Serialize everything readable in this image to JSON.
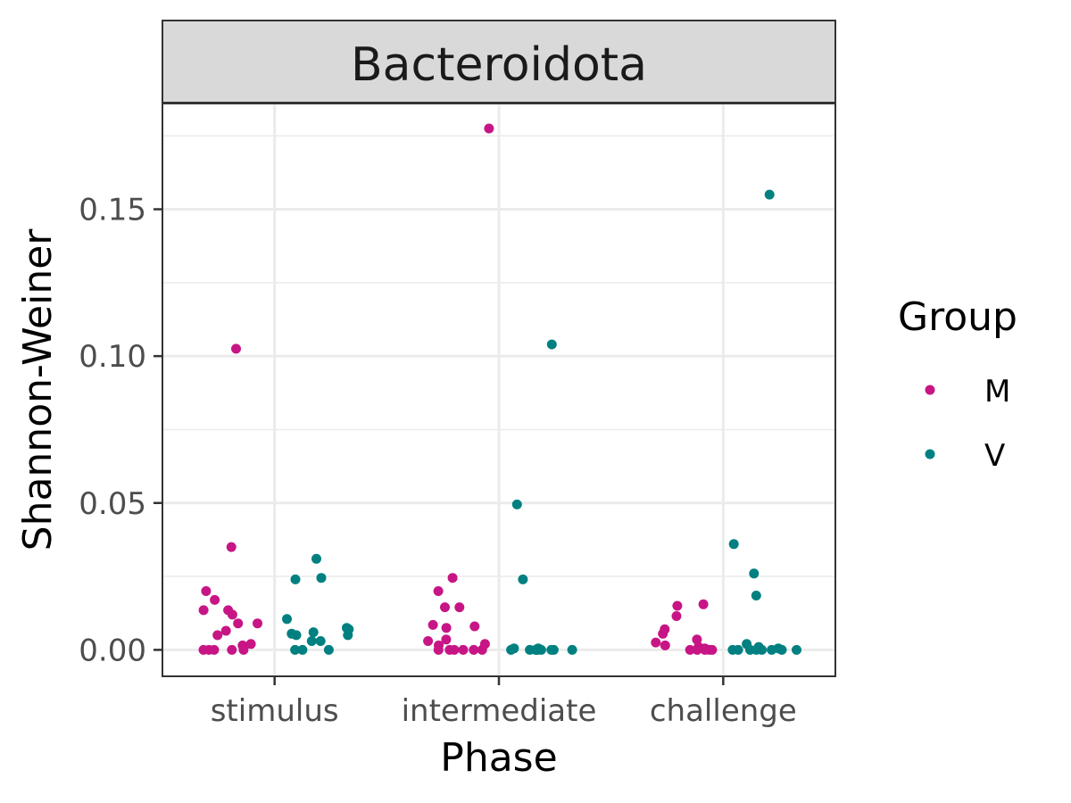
{
  "chart_data": {
    "type": "scatter",
    "facet_title": "Bacteroidota",
    "xlabel": "Phase",
    "ylabel": "Shannon-Weiner",
    "categories": [
      "stimulus",
      "intermediate",
      "challenge"
    ],
    "ylim": [
      -0.009,
      0.186
    ],
    "yticks": [
      0.0,
      0.05,
      0.1,
      0.15
    ],
    "ytick_labels": [
      "0.00",
      "0.05",
      "0.10",
      "0.15"
    ],
    "grid": true,
    "legend": {
      "title": "Group",
      "position": "right",
      "entries": [
        {
          "label": "M",
          "color": "#c71585"
        },
        {
          "label": "V",
          "color": "#008080"
        }
      ]
    },
    "colors": {
      "M": "#c71585",
      "V": "#008080"
    },
    "points": {
      "stimulus": {
        "M": [
          0.035,
          0.1025,
          0.02,
          0.017,
          0.0135,
          0.012,
          0.0135,
          0.009,
          0.009,
          0.0065,
          0.005,
          0.002,
          0.0015,
          0.0,
          0.0,
          0.0,
          0.0,
          0.0
        ],
        "V": [
          0.0245,
          0.031,
          0.024,
          0.0105,
          0.0075,
          0.007,
          0.0055,
          0.006,
          0.005,
          0.005,
          0.003,
          0.003,
          0.0,
          0.0,
          0.0
        ]
      },
      "intermediate": {
        "M": [
          0.1775,
          0.0245,
          0.02,
          0.0145,
          0.0145,
          0.0085,
          0.008,
          0.0075,
          0.0035,
          0.003,
          0.002,
          0.0015,
          0.0,
          0.0,
          0.0,
          0.0,
          0.0,
          0.0
        ],
        "V": [
          0.104,
          0.0495,
          0.024,
          0.0005,
          0.0005,
          0.0,
          0.0,
          0.0,
          0.0,
          0.0,
          0.0,
          0.0,
          0.0,
          0.0
        ]
      },
      "challenge": {
        "M": [
          0.0155,
          0.015,
          0.0115,
          0.007,
          0.0055,
          0.0035,
          0.0025,
          0.0015,
          0.001,
          0.0005,
          0.0,
          0.0,
          0.0,
          0.0,
          0.0
        ],
        "V": [
          0.155,
          0.036,
          0.026,
          0.0185,
          0.002,
          0.001,
          0.0005,
          0.0,
          0.0,
          0.0,
          0.0,
          0.0,
          0.0,
          0.0,
          0.0
        ]
      }
    }
  }
}
